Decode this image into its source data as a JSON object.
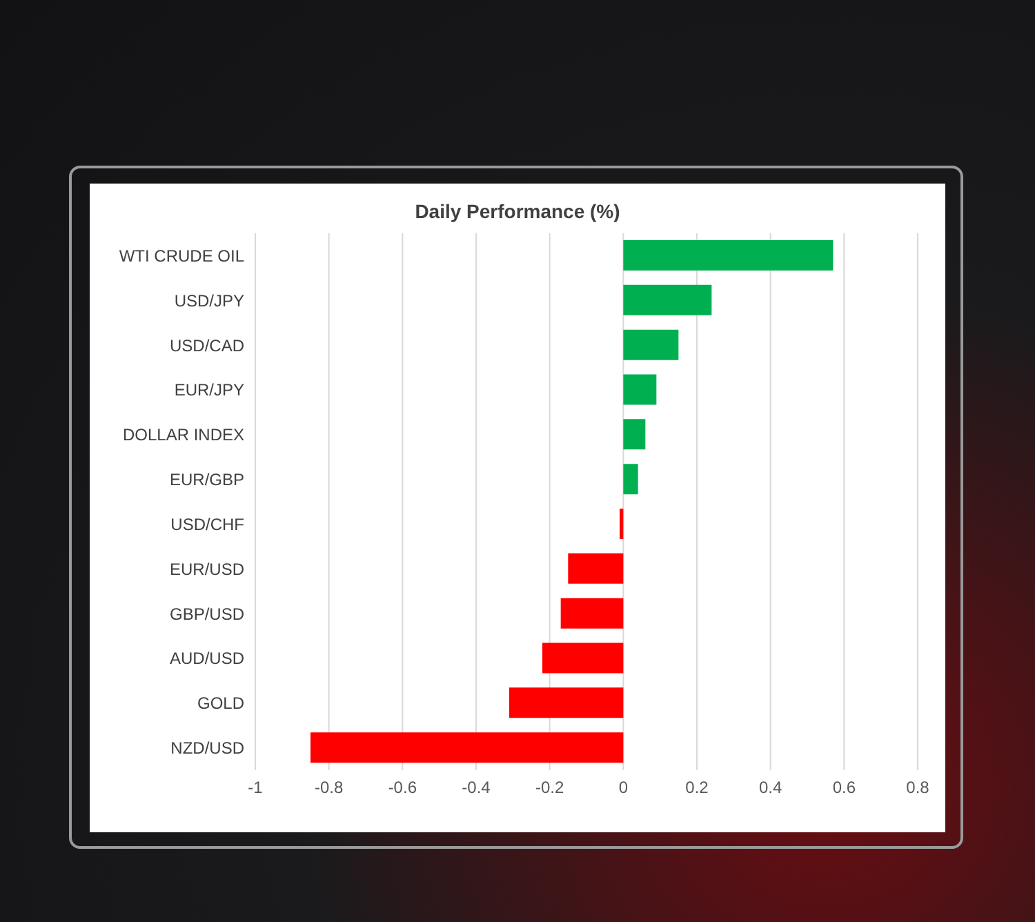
{
  "chart_data": {
    "type": "bar",
    "orientation": "horizontal",
    "title": "Daily Performance (%)",
    "categories": [
      "WTI CRUDE OIL",
      "USD/JPY",
      "USD/CAD",
      "EUR/JPY",
      "DOLLAR INDEX",
      "EUR/GBP",
      "USD/CHF",
      "EUR/USD",
      "GBP/USD",
      "AUD/USD",
      "GOLD",
      "NZD/USD"
    ],
    "values": [
      0.57,
      0.24,
      0.15,
      0.09,
      0.06,
      0.04,
      -0.01,
      -0.15,
      -0.17,
      -0.22,
      -0.31,
      -0.85
    ],
    "colors": [
      "#00b050",
      "#00b050",
      "#00b050",
      "#00b050",
      "#00b050",
      "#00b050",
      "#ff0000",
      "#ff0000",
      "#ff0000",
      "#ff0000",
      "#ff0000",
      "#ff0000"
    ],
    "xlim": [
      -1,
      0.8
    ],
    "xticks": [
      -1,
      -0.8,
      -0.6,
      -0.4,
      -0.2,
      0,
      0.2,
      0.4,
      0.6,
      0.8
    ],
    "grid": "x",
    "legend": false
  }
}
